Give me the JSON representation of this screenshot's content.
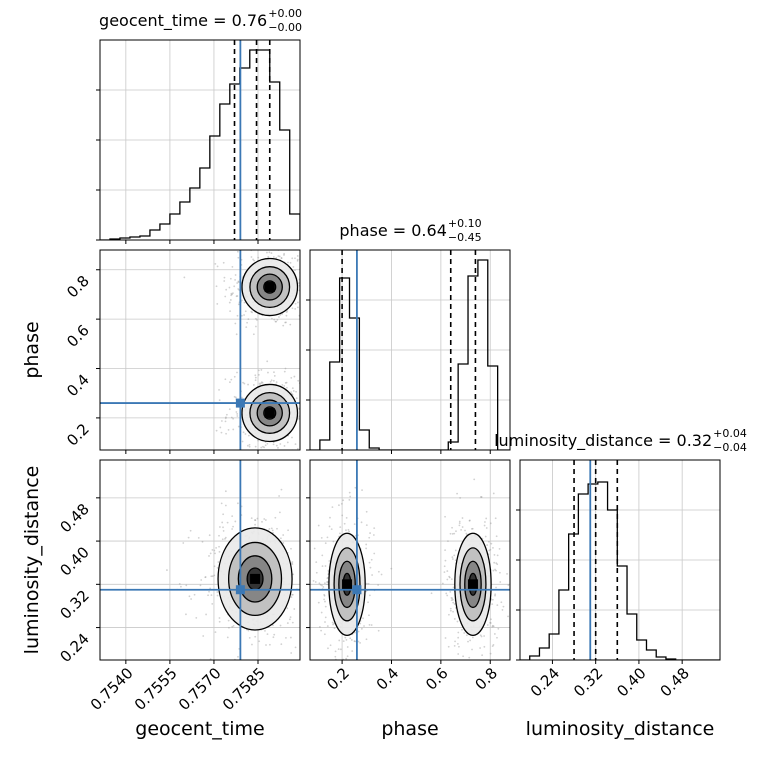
{
  "chart_data": {
    "type": "corner",
    "parameters": [
      "geocent_time",
      "phase",
      "luminosity_distance"
    ],
    "truths": {
      "geocent_time": 0.7579,
      "phase": 0.26,
      "luminosity_distance": 0.31
    },
    "truth_color": "#3b78b5",
    "ranges": {
      "geocent_time": [
        0.75312,
        0.75993
      ],
      "phase": [
        0.07,
        0.88
      ],
      "luminosity_distance": [
        0.18,
        0.55
      ]
    },
    "grid": true,
    "titles": [
      {
        "param": "geocent_time",
        "text": "geocent_time = 0.76",
        "plus": "+0.00",
        "minus": "−0.00"
      },
      {
        "param": "phase",
        "text": "phase = 0.64",
        "plus": "+0.10",
        "minus": "−0.45"
      },
      {
        "param": "luminosity_distance",
        "text": "luminosity_distance = 0.32",
        "plus": "+0.04",
        "minus": "−0.04"
      }
    ],
    "axis_labels": {
      "geocent_time": "geocent_time",
      "phase": "phase",
      "luminosity_distance": "luminosity_distance"
    },
    "ticks": {
      "geocent_time": {
        "values": [
          0.754,
          0.7555,
          0.757,
          0.7585
        ],
        "labels": [
          "0.7540",
          "0.7555",
          "0.7570",
          "0.7585"
        ]
      },
      "phase": {
        "values": [
          0.2,
          0.4,
          0.6,
          0.8
        ],
        "labels": [
          "0.2",
          "0.4",
          "0.6",
          "0.8"
        ]
      },
      "luminosity_distance": {
        "values": [
          0.24,
          0.32,
          0.4,
          0.48
        ],
        "labels": [
          "0.24",
          "0.32",
          "0.40",
          "0.48"
        ]
      }
    },
    "quantiles": {
      "geocent_time": [
        0.7577,
        0.75845,
        0.7589
      ],
      "phase": [
        0.2,
        0.64,
        0.74
      ],
      "luminosity_distance": [
        0.28,
        0.32,
        0.36
      ]
    },
    "histograms": {
      "geocent_time": {
        "edges": [
          0.75312,
          0.75346,
          0.7538,
          0.75414,
          0.75448,
          0.75482,
          0.75516,
          0.7555,
          0.75584,
          0.75618,
          0.75652,
          0.75686,
          0.7572,
          0.75754,
          0.75788,
          0.75822,
          0.75856,
          0.7589,
          0.75924,
          0.75958,
          0.75993
        ],
        "counts": [
          0.0,
          0.005,
          0.01,
          0.015,
          0.02,
          0.05,
          0.08,
          0.13,
          0.19,
          0.26,
          0.36,
          0.52,
          0.68,
          0.78,
          0.86,
          0.95,
          0.95,
          0.79,
          0.55,
          0.13
        ]
      },
      "phase": {
        "edges": [
          0.07,
          0.11,
          0.15,
          0.19,
          0.23,
          0.27,
          0.31,
          0.35,
          0.39,
          0.43,
          0.47,
          0.51,
          0.55,
          0.59,
          0.63,
          0.67,
          0.71,
          0.75,
          0.79,
          0.83,
          0.88
        ],
        "counts": [
          0.0,
          0.05,
          0.44,
          0.86,
          0.66,
          0.1,
          0.01,
          0.0,
          0.0,
          0.0,
          0.0,
          0.0,
          0.0,
          0.0,
          0.04,
          0.43,
          0.87,
          0.95,
          0.42,
          0.0
        ]
      },
      "luminosity_distance": {
        "edges": [
          0.18,
          0.198,
          0.216,
          0.234,
          0.252,
          0.27,
          0.288,
          0.306,
          0.324,
          0.342,
          0.36,
          0.378,
          0.396,
          0.414,
          0.432,
          0.45,
          0.468,
          0.486,
          0.504,
          0.522,
          0.55
        ],
        "counts": [
          0.0,
          0.02,
          0.06,
          0.13,
          0.35,
          0.63,
          0.83,
          0.88,
          0.89,
          0.75,
          0.47,
          0.23,
          0.1,
          0.05,
          0.015,
          0.005,
          0.0,
          0.0,
          0.0,
          0.0
        ]
      }
    },
    "contours_2d": [
      {
        "x": "geocent_time",
        "y": "phase",
        "blobs": [
          {
            "cx": 0.7589,
            "cy": 0.73,
            "sx": 0.00045,
            "sy": 0.055
          },
          {
            "cx": 0.7589,
            "cy": 0.22,
            "sx": 0.00045,
            "sy": 0.055
          }
        ]
      },
      {
        "x": "geocent_time",
        "y": "luminosity_distance",
        "blobs": [
          {
            "cx": 0.7584,
            "cy": 0.33,
            "sx": 0.0006,
            "sy": 0.045
          }
        ]
      },
      {
        "x": "phase",
        "y": "luminosity_distance",
        "blobs": [
          {
            "cx": 0.22,
            "cy": 0.32,
            "sx": 0.035,
            "sy": 0.045
          },
          {
            "cx": 0.73,
            "cy": 0.32,
            "sx": 0.035,
            "sy": 0.045
          }
        ]
      }
    ]
  }
}
